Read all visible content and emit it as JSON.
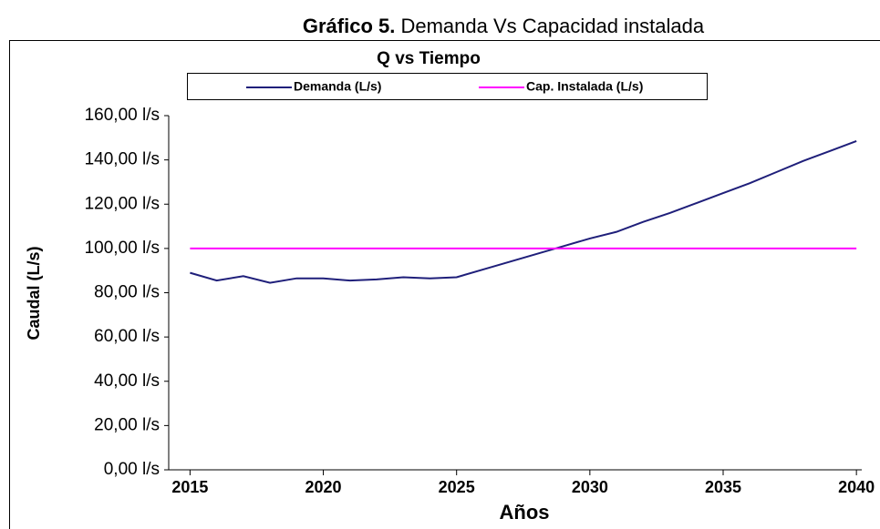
{
  "caption": {
    "label": "Gráfico 5.",
    "text": "Demanda Vs Capacidad instalada"
  },
  "chart_data": {
    "type": "line",
    "title": "Q vs Tiempo",
    "x_label": "Años",
    "y_label": "Caudal (L/s)",
    "x": [
      2015,
      2016,
      2017,
      2018,
      2019,
      2020,
      2021,
      2022,
      2023,
      2024,
      2025,
      2026,
      2027,
      2028,
      2029,
      2030,
      2031,
      2032,
      2033,
      2034,
      2035,
      2036,
      2037,
      2038,
      2039,
      2040
    ],
    "series": [
      {
        "name": "Demanda (L/s)",
        "color": "#1f1f7a",
        "values": [
          89,
          85.5,
          87.5,
          84.5,
          86.5,
          86.5,
          85.5,
          86,
          87,
          86.5,
          87,
          90.5,
          94,
          97.5,
          101,
          104.5,
          107.5,
          112,
          116,
          120.5,
          125,
          129.5,
          134.5,
          139.5,
          144,
          148.5
        ]
      },
      {
        "name": "Cap. Instalada (L/s)",
        "color": "#ff00ff",
        "values": [
          100,
          100,
          100,
          100,
          100,
          100,
          100,
          100,
          100,
          100,
          100,
          100,
          100,
          100,
          100,
          100,
          100,
          100,
          100,
          100,
          100,
          100,
          100,
          100,
          100,
          100
        ]
      }
    ],
    "xlim": [
      2014.2,
      2040.2
    ],
    "xticks": [
      2015,
      2020,
      2025,
      2030,
      2035,
      2040
    ],
    "ylim": [
      0,
      160
    ],
    "yticks": [
      {
        "value": 0,
        "label": "0,00 l/s"
      },
      {
        "value": 20,
        "label": "20,00 l/s"
      },
      {
        "value": 40,
        "label": "40,00 l/s"
      },
      {
        "value": 60,
        "label": "60,00 l/s"
      },
      {
        "value": 80,
        "label": "80,00 l/s"
      },
      {
        "value": 100,
        "label": "100,00 l/s"
      },
      {
        "value": 120,
        "label": "120,00 l/s"
      },
      {
        "value": 140,
        "label": "140,00 l/s"
      },
      {
        "value": 160,
        "label": "160,00 l/s"
      }
    ],
    "legend": "top"
  }
}
